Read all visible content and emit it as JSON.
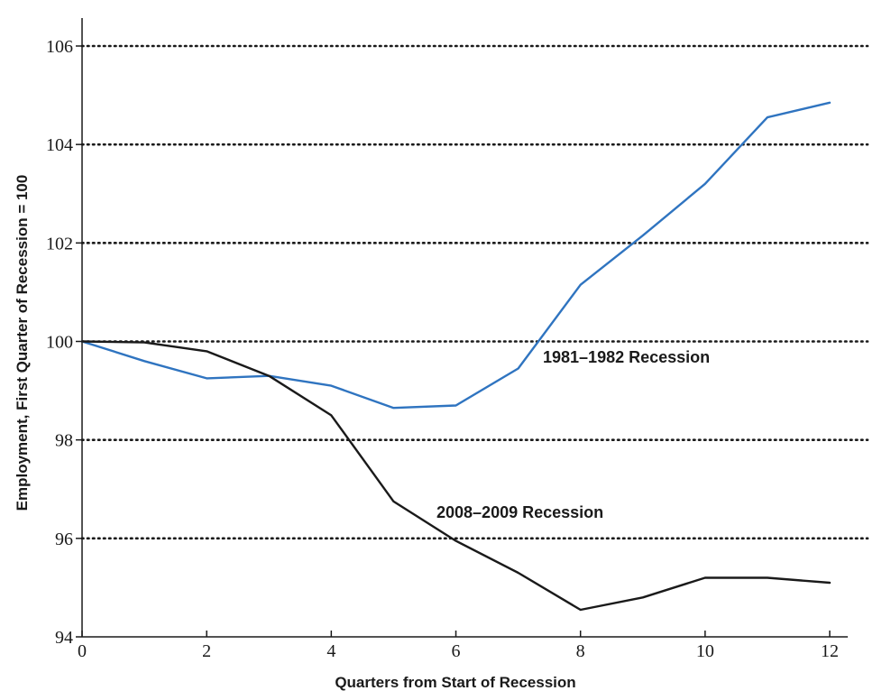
{
  "chart_data": {
    "type": "line",
    "xlabel": "Quarters from Start of Recession",
    "ylabel": "Employment, First Quarter of Recession = 100",
    "xlim": [
      0,
      12
    ],
    "ylim": [
      94,
      106
    ],
    "x_ticks": [
      0,
      2,
      4,
      6,
      8,
      10,
      12
    ],
    "y_ticks": [
      94,
      96,
      98,
      100,
      102,
      104,
      106
    ],
    "grid": "horizontal dotted lines at y ticks",
    "legend": "none (series labeled inline)",
    "x": [
      0,
      1,
      2,
      3,
      4,
      5,
      6,
      7,
      8,
      9,
      10,
      11,
      12
    ],
    "series": [
      {
        "name": "1981–1982 Recession",
        "color": "#2f74c0",
        "values": [
          100.0,
          99.6,
          99.25,
          99.3,
          99.1,
          98.65,
          98.7,
          99.45,
          101.15,
          102.15,
          103.2,
          104.55,
          104.85
        ]
      },
      {
        "name": "2008–2009 Recession",
        "color": "#1a1a1a",
        "values": [
          100.0,
          99.98,
          99.8,
          99.3,
          98.5,
          96.75,
          95.95,
          95.3,
          94.55,
          94.8,
          95.2,
          95.2,
          95.1
        ]
      }
    ],
    "annotations": [
      {
        "text": "1981–1982 Recession",
        "series": 0
      },
      {
        "text": "2008–2009 Recession",
        "series": 1
      }
    ]
  }
}
